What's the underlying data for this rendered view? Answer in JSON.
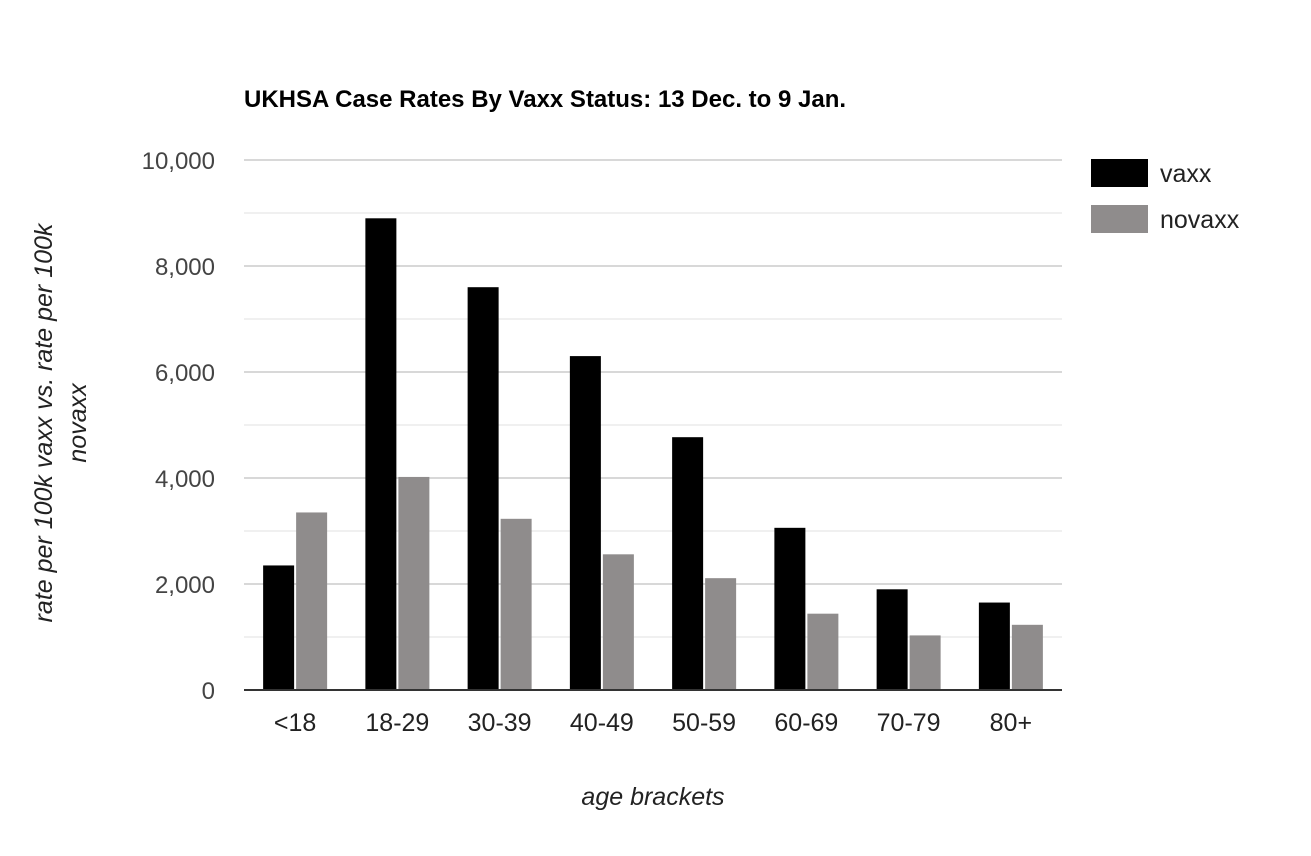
{
  "chart_data": {
    "type": "bar",
    "title": "UKHSA Case Rates By Vaxx Status: 13 Dec. to 9 Jan.",
    "xlabel": "age brackets",
    "ylabel_lines": [
      "rate per 100k vaxx vs. rate per 100k",
      "novaxx"
    ],
    "categories": [
      "<18",
      "18-29",
      "30-39",
      "40-49",
      "50-59",
      "60-69",
      "70-79",
      "80+"
    ],
    "series": [
      {
        "name": "vaxx",
        "color": "#000000",
        "values": [
          2350,
          8900,
          7600,
          6300,
          4770,
          3060,
          1900,
          1650
        ]
      },
      {
        "name": "novaxx",
        "color": "#8f8c8c",
        "values": [
          3350,
          4020,
          3230,
          2560,
          2110,
          1440,
          1030,
          1230
        ]
      }
    ],
    "ylim": [
      0,
      10000
    ],
    "yticks": [
      0,
      2000,
      4000,
      6000,
      8000,
      10000
    ],
    "ytick_labels": [
      "0",
      "2,000",
      "4,000",
      "6,000",
      "8,000",
      "10,000"
    ],
    "grid": true,
    "minor_grid": true,
    "legend_position": "top-right"
  }
}
